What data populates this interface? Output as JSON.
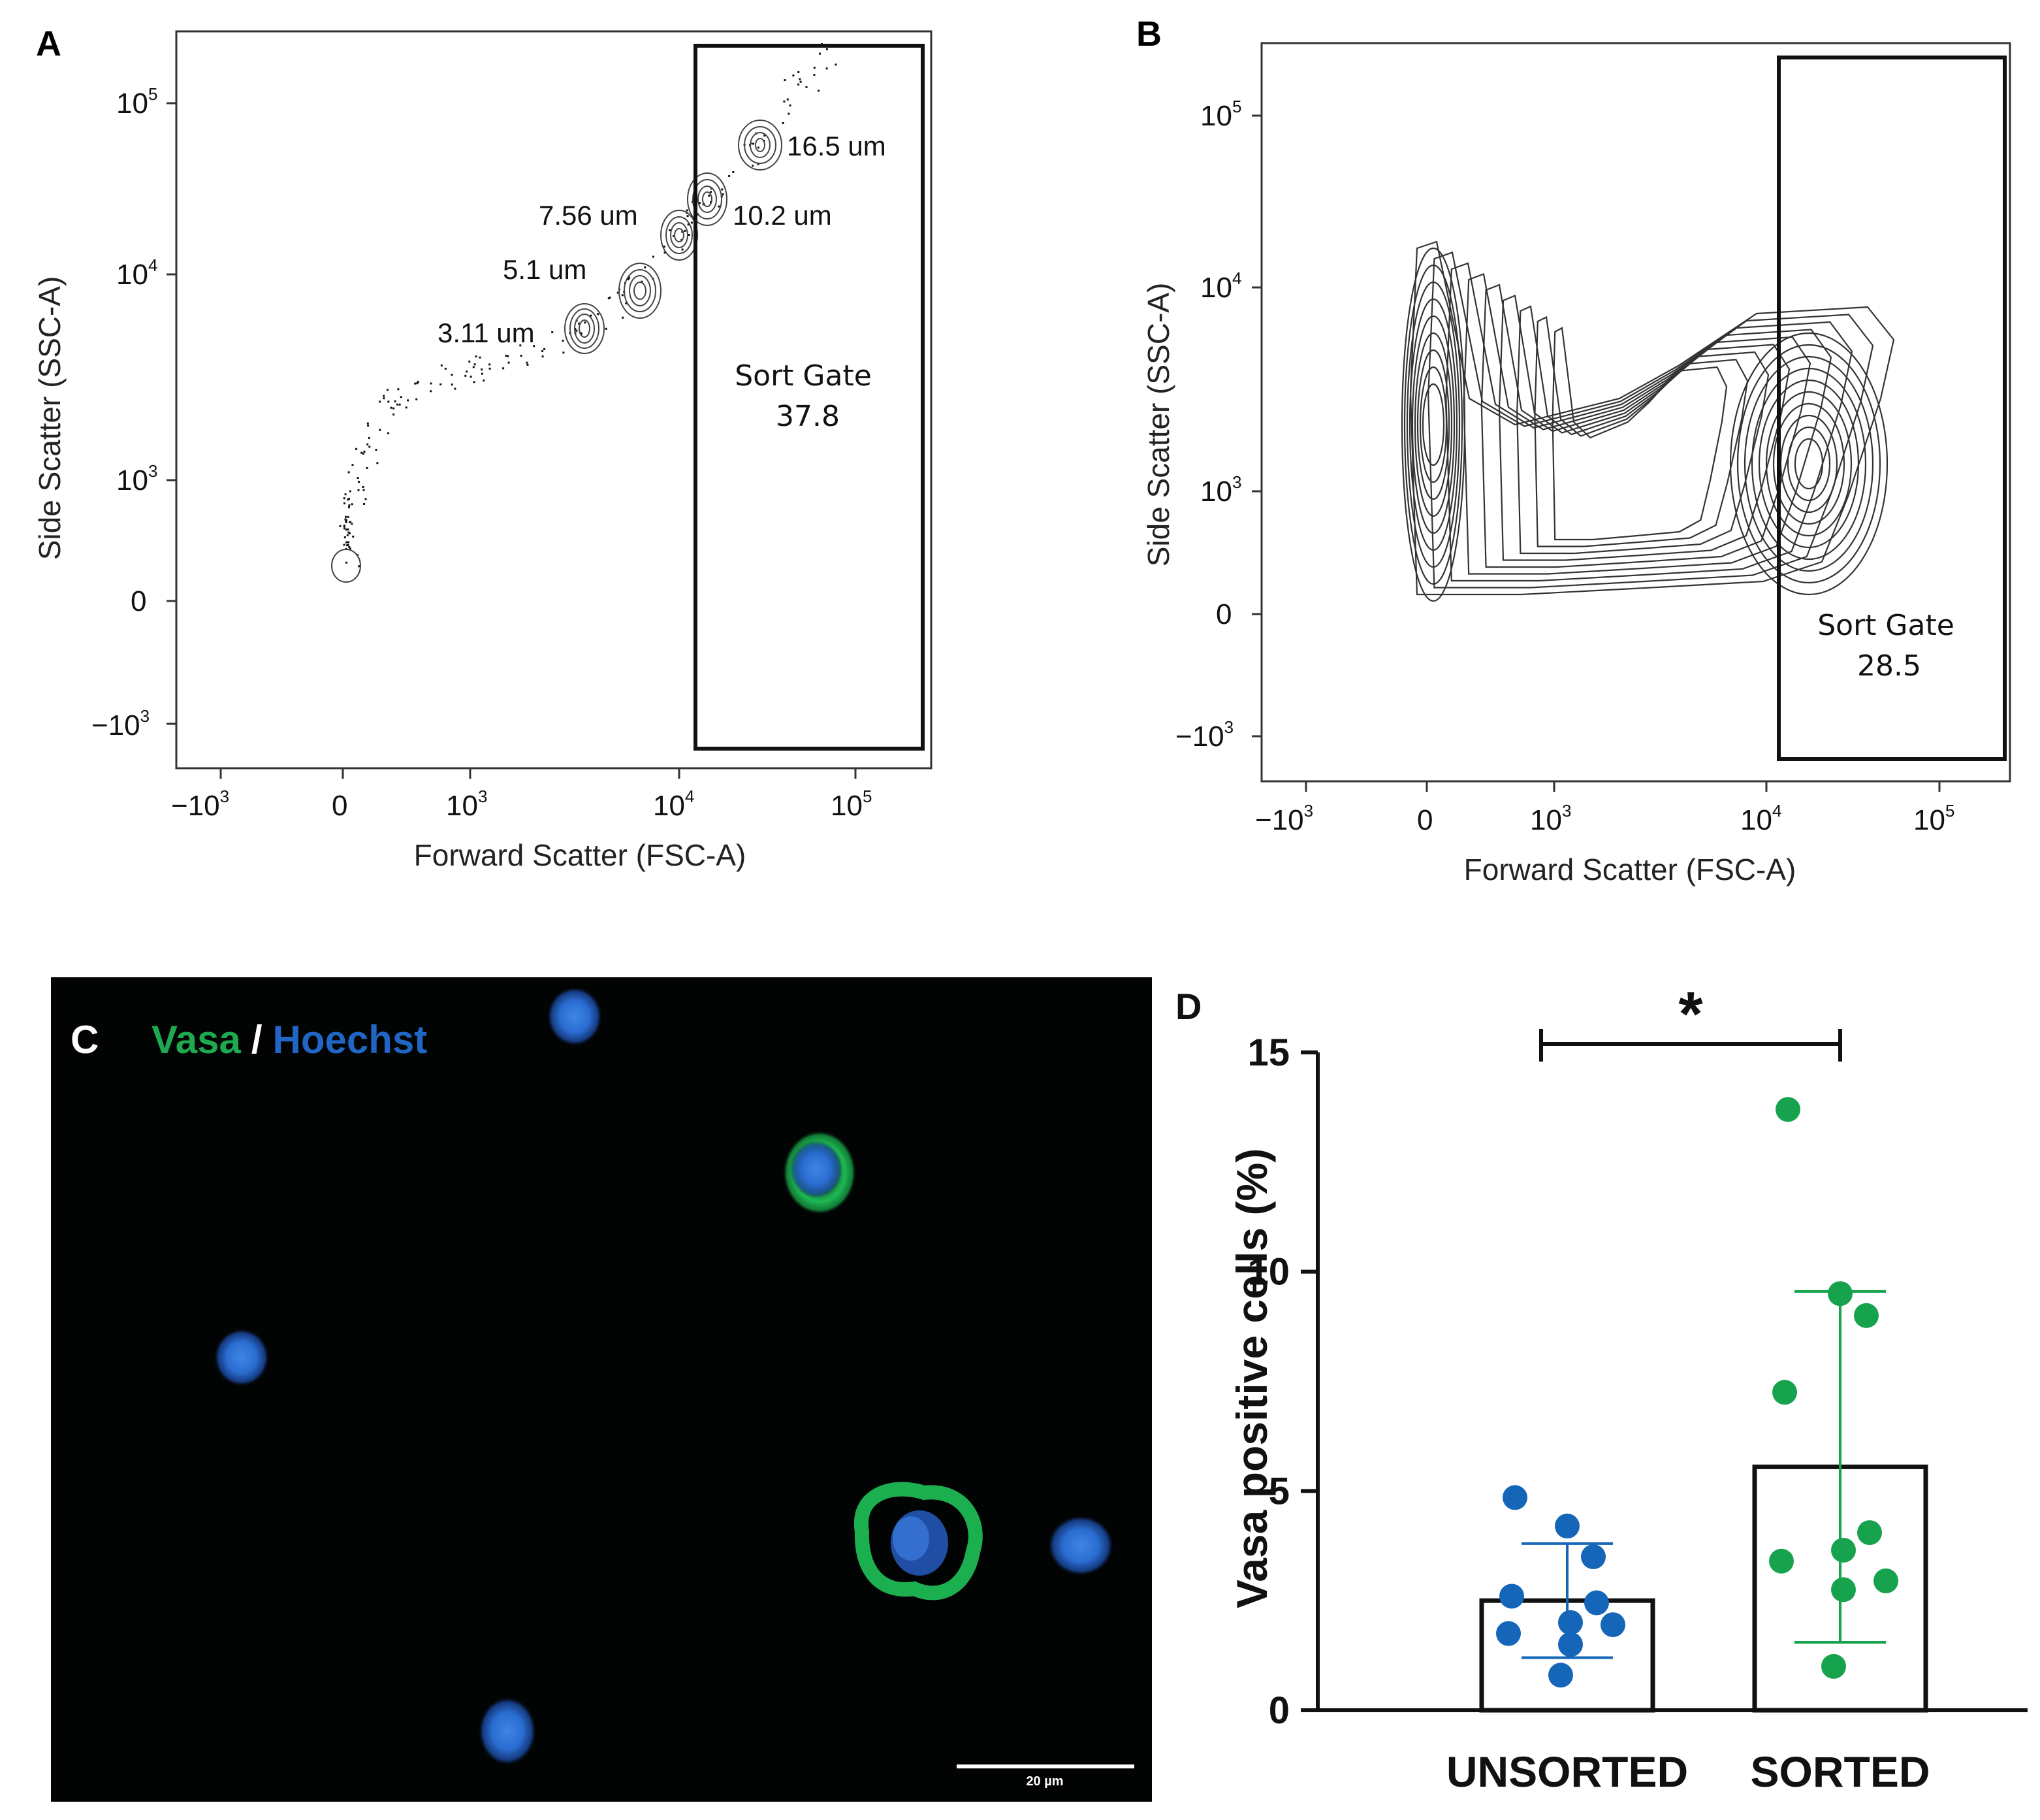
{
  "panel_a": {
    "letter": "A",
    "xlabel": "Forward Scatter (FSC-A)",
    "ylabel": "Side Scatter (SSC-A)",
    "x_ticks": [
      "−10",
      "0",
      "10",
      "10",
      "10"
    ],
    "x_tick_exponents": [
      "3",
      "",
      "3",
      "4",
      "5"
    ],
    "y_ticks": [
      "10",
      "10",
      "10",
      "0",
      "−10"
    ],
    "y_tick_exponents": [
      "5",
      "4",
      "3",
      "",
      "3"
    ],
    "bead_labels": [
      "16.5 um",
      "7.56 um",
      "10.2 um",
      "5.1 um",
      "3.11 um"
    ],
    "gate_name": "Sort Gate",
    "gate_value": "37.8"
  },
  "panel_b": {
    "letter": "B",
    "xlabel": "Forward Scatter (FSC-A)",
    "ylabel": "Side Scatter (SSC-A)",
    "x_ticks": [
      "−10",
      "0",
      "10",
      "10",
      "10"
    ],
    "x_tick_exponents": [
      "3",
      "",
      "3",
      "4",
      "5"
    ],
    "y_ticks": [
      "10",
      "10",
      "10",
      "0",
      "−10"
    ],
    "y_tick_exponents": [
      "5",
      "4",
      "3",
      "",
      "3"
    ],
    "gate_name": "Sort Gate",
    "gate_value": "28.5"
  },
  "panel_c": {
    "letter": "C",
    "label_vasa": "Vasa",
    "label_sep": "/",
    "label_hoechst": "Hoechst",
    "scale_bar": "20 µm",
    "colors": {
      "vasa": "#1ea84f",
      "hoechst": "#2166c4",
      "background": "#020303"
    }
  },
  "chart_data": {
    "type": "bar",
    "panel_letter": "D",
    "categories": [
      "UNSORTED",
      "SORTED"
    ],
    "ylabel": "Vasa positive cells (%)",
    "ylim": [
      0,
      15
    ],
    "yticks": [
      0,
      5,
      10,
      15
    ],
    "bar_means": [
      2.5,
      5.55
    ],
    "error_sd": [
      1.3,
      4.0
    ],
    "points": [
      [
        4.85,
        4.2,
        3.5,
        2.6,
        2.45,
        2.0,
        1.75,
        1.95,
        1.5,
        0.8
      ],
      [
        13.7,
        9.5,
        9.0,
        7.25,
        4.05,
        3.65,
        3.4,
        2.95,
        2.75,
        1.0
      ]
    ],
    "colors": [
      "#1565b8",
      "#17a24d"
    ],
    "significance": "*"
  }
}
